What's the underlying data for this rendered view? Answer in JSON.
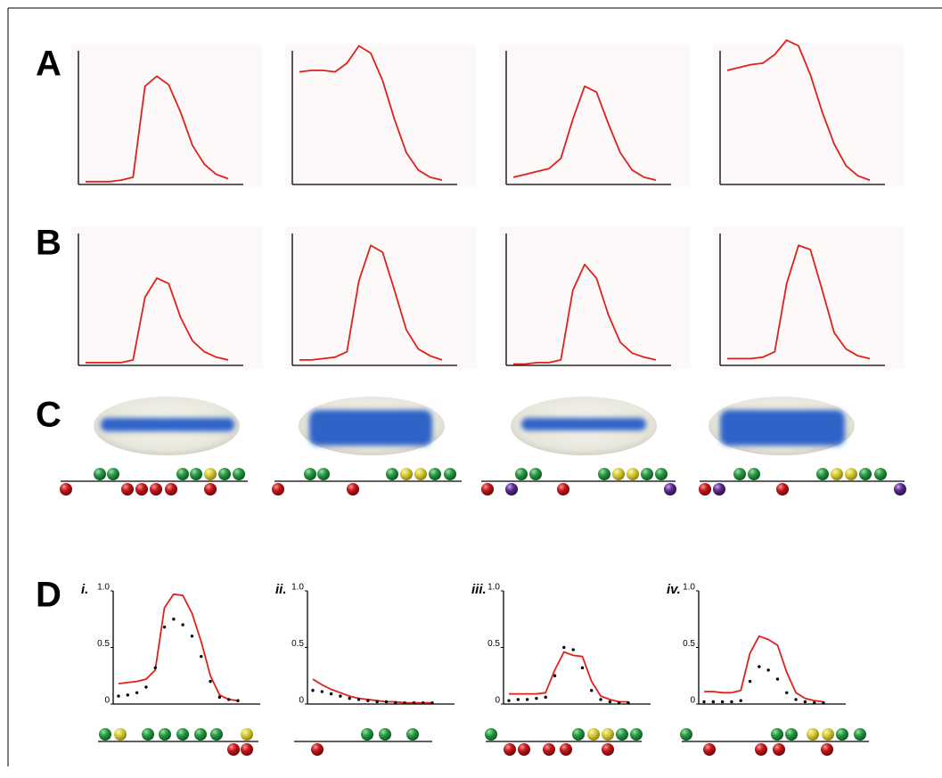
{
  "panel_labels": [
    "A",
    "B",
    "C",
    "D"
  ],
  "chart_data": [
    {
      "type": "line",
      "ylim": [
        0,
        1
      ],
      "series": [
        {
          "color": "#e0201b",
          "values": [
            0.02,
            0.02,
            0.02,
            0.03,
            0.05,
            0.68,
            0.75,
            0.69,
            0.5,
            0.27,
            0.14,
            0.07,
            0.04
          ]
        }
      ]
    },
    {
      "type": "line",
      "ylim": [
        0,
        1
      ],
      "series": [
        {
          "color": "#e0201b",
          "values": [
            0.78,
            0.79,
            0.79,
            0.78,
            0.84,
            0.96,
            0.91,
            0.72,
            0.45,
            0.22,
            0.1,
            0.05,
            0.03
          ]
        }
      ]
    },
    {
      "type": "line",
      "ylim": [
        0,
        1
      ],
      "series": [
        {
          "color": "#e0201b",
          "values": [
            0.05,
            0.07,
            0.09,
            0.11,
            0.18,
            0.45,
            0.68,
            0.64,
            0.42,
            0.22,
            0.1,
            0.05,
            0.03
          ]
        }
      ]
    },
    {
      "type": "line",
      "ylim": [
        0,
        1
      ],
      "series": [
        {
          "color": "#e0201b",
          "values": [
            0.79,
            0.81,
            0.83,
            0.84,
            0.9,
            1.0,
            0.96,
            0.76,
            0.5,
            0.28,
            0.13,
            0.06,
            0.03
          ]
        }
      ]
    },
    {
      "type": "line",
      "ylim": [
        0,
        1
      ],
      "series": [
        {
          "color": "#e0201b",
          "values": [
            0.02,
            0.02,
            0.02,
            0.02,
            0.04,
            0.5,
            0.64,
            0.6,
            0.35,
            0.18,
            0.1,
            0.06,
            0.04
          ]
        }
      ]
    },
    {
      "type": "line",
      "ylim": [
        0,
        1
      ],
      "series": [
        {
          "color": "#e0201b",
          "values": [
            0.04,
            0.04,
            0.05,
            0.06,
            0.1,
            0.62,
            0.88,
            0.83,
            0.55,
            0.26,
            0.12,
            0.07,
            0.04
          ]
        }
      ]
    },
    {
      "type": "line",
      "ylim": [
        0,
        1
      ],
      "series": [
        {
          "color": "#e0201b",
          "values": [
            0.01,
            0.01,
            0.02,
            0.02,
            0.04,
            0.55,
            0.74,
            0.64,
            0.37,
            0.17,
            0.09,
            0.06,
            0.04
          ]
        }
      ]
    },
    {
      "type": "line",
      "ylim": [
        0,
        1
      ],
      "series": [
        {
          "color": "#e0201b",
          "values": [
            0.05,
            0.05,
            0.05,
            0.06,
            0.1,
            0.6,
            0.88,
            0.85,
            0.55,
            0.24,
            0.12,
            0.07,
            0.05
          ]
        }
      ]
    },
    {
      "type": "line",
      "title": "i.",
      "ylim": [
        0,
        1
      ],
      "yticks": [
        0,
        0.5,
        {
          "value": 1,
          "label": "1.0"
        }
      ],
      "series": [
        {
          "color": "#e0201b",
          "values": [
            0.18,
            0.19,
            0.2,
            0.22,
            0.3,
            0.85,
            0.97,
            0.96,
            0.8,
            0.55,
            0.25,
            0.08,
            0.04,
            0.03
          ]
        },
        {
          "color": "#000000",
          "style": "dotted",
          "values": [
            0.07,
            0.08,
            0.1,
            0.15,
            0.32,
            0.68,
            0.75,
            0.7,
            0.6,
            0.42,
            0.2,
            0.06,
            0.04,
            0.03
          ]
        }
      ]
    },
    {
      "type": "line",
      "title": "ii.",
      "ylim": [
        0,
        1
      ],
      "yticks": [
        0,
        0.5,
        {
          "value": 1,
          "label": "1.0"
        }
      ],
      "series": [
        {
          "color": "#e0201b",
          "values": [
            0.22,
            0.17,
            0.13,
            0.1,
            0.07,
            0.05,
            0.04,
            0.03,
            0.02,
            0.02,
            0.01,
            0.01,
            0.01,
            0.01
          ]
        },
        {
          "color": "#000000",
          "style": "dotted",
          "values": [
            0.12,
            0.11,
            0.09,
            0.07,
            0.05,
            0.04,
            0.03,
            0.02,
            0.02,
            0.01,
            0.01,
            0.01,
            0.01,
            0.01
          ]
        }
      ]
    },
    {
      "type": "line",
      "title": "iii.",
      "ylim": [
        0,
        1
      ],
      "yticks": [
        0,
        0.5,
        {
          "value": 1,
          "label": "1.0"
        }
      ],
      "series": [
        {
          "color": "#e0201b",
          "values": [
            0.09,
            0.09,
            0.09,
            0.09,
            0.1,
            0.3,
            0.46,
            0.43,
            0.42,
            0.2,
            0.07,
            0.04,
            0.02,
            0.02
          ]
        },
        {
          "color": "#000000",
          "style": "dotted",
          "values": [
            0.03,
            0.04,
            0.04,
            0.05,
            0.06,
            0.25,
            0.5,
            0.48,
            0.32,
            0.12,
            0.04,
            0.02,
            0.01,
            0.01
          ]
        }
      ]
    },
    {
      "type": "line",
      "title": "iv.",
      "ylim": [
        0,
        1
      ],
      "yticks": [
        0,
        0.5,
        {
          "value": 1,
          "label": "1.0"
        }
      ],
      "series": [
        {
          "color": "#e0201b",
          "values": [
            0.11,
            0.11,
            0.1,
            0.1,
            0.12,
            0.45,
            0.6,
            0.57,
            0.52,
            0.28,
            0.1,
            0.05,
            0.03,
            0.02
          ]
        },
        {
          "color": "#000000",
          "style": "dotted",
          "values": [
            0.02,
            0.02,
            0.02,
            0.02,
            0.03,
            0.2,
            0.33,
            0.3,
            0.22,
            0.1,
            0.04,
            0.02,
            0.01,
            0.01
          ]
        }
      ]
    }
  ]
}
